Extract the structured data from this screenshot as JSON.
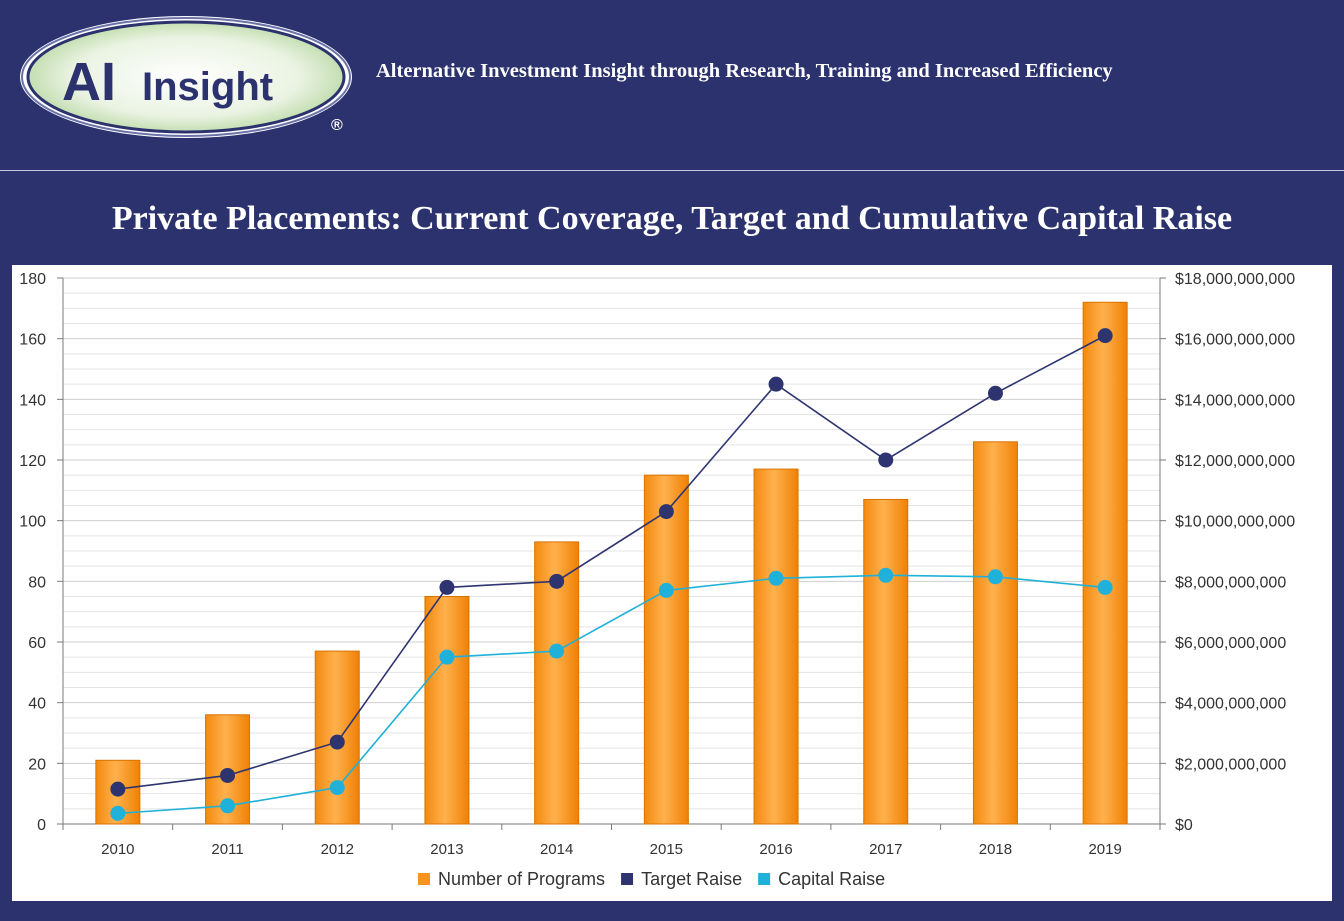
{
  "header": {
    "logo_text": "AI Insight",
    "logo_mark": "®",
    "tagline": "Alternative Investment Insight through Research, Training and Increased Efficiency"
  },
  "page_title": "Private Placements: Current Coverage, Target and Cumulative Capital Raise",
  "colors": {
    "background": "#2b326d",
    "bar": "#f7941d",
    "target": "#2e3470",
    "capital": "#1fb1d9",
    "grid": "#d9d9d9"
  },
  "chart_data": {
    "type": "bar",
    "categories": [
      "2010",
      "2011",
      "2012",
      "2013",
      "2014",
      "2015",
      "2016",
      "2017",
      "2018",
      "2019"
    ],
    "series": [
      {
        "name": "Number of Programs",
        "type": "bar",
        "axis": "left",
        "values": [
          21,
          36,
          57,
          75,
          93,
          115,
          117,
          107,
          126,
          172
        ]
      },
      {
        "name": "Target Raise",
        "type": "line",
        "axis": "right",
        "values": [
          1150000000,
          1600000000,
          2700000000,
          7800000000,
          8000000000,
          10300000000,
          14500000000,
          12000000000,
          14200000000,
          16100000000
        ]
      },
      {
        "name": "Capital Raise",
        "type": "line",
        "axis": "right",
        "values": [
          350000000,
          600000000,
          1200000000,
          5500000000,
          5700000000,
          7700000000,
          8100000000,
          8200000000,
          8150000000,
          7800000000
        ]
      }
    ],
    "left_axis": {
      "min": 0,
      "max": 180,
      "step": 20,
      "ticks": [
        "0",
        "20",
        "40",
        "60",
        "80",
        "100",
        "120",
        "140",
        "160",
        "180"
      ]
    },
    "right_axis": {
      "min": 0,
      "max": 18000000000,
      "step": 2000000000,
      "ticks": [
        "$0",
        "$2,000,000,000",
        "$4,000,000,000",
        "$6,000,000,000",
        "$8,000,000,000",
        "$10,000,000,000",
        "$12,000,000,000",
        "$14,000,000,000",
        "$16,000,000,000",
        "$18,000,000,000"
      ]
    },
    "legend": [
      "Number of Programs",
      "Target Raise",
      "Capital Raise"
    ],
    "legend_position": "bottom",
    "grid": true
  }
}
